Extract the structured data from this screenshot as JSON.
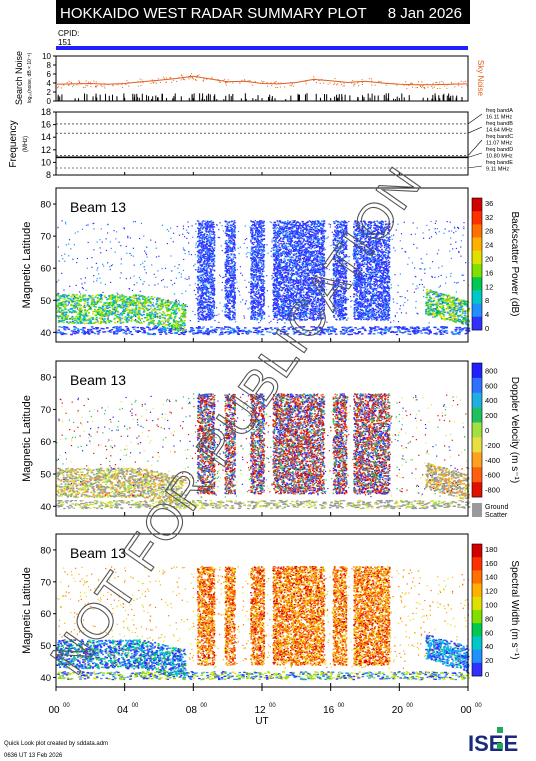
{
  "header": {
    "title": "HOKKAIDO WEST RADAR SUMMARY PLOT",
    "date": "8 Jan 2026",
    "cpid_label": "CPID:",
    "cpid_value": "151"
  },
  "colors": {
    "header_bg": "#000000",
    "cpid_bar": "#1f1fff",
    "noise_line": "#e06020",
    "ground_scatter": "#9a9a9a"
  },
  "chart_data": [
    {
      "id": "search-noise",
      "type": "line",
      "ylabel": "Search Noise",
      "ylabel_sub": "log₁₀(noise, dB × 10⁻⁶)",
      "yticks": [
        "0",
        "2",
        "4",
        "6",
        "8",
        "10"
      ],
      "ylim": [
        0,
        10
      ],
      "right_label": "Sky Noise",
      "x": [
        0,
        1,
        2,
        3,
        4,
        5,
        6,
        7,
        8,
        9,
        10,
        11,
        12,
        13,
        14,
        15,
        16,
        17,
        18,
        19,
        20,
        21,
        22,
        23,
        24
      ],
      "values": [
        3.7,
        3.8,
        3.9,
        3.7,
        3.9,
        4.3,
        4.6,
        5.0,
        5.5,
        4.9,
        4.3,
        4.4,
        3.9,
        3.8,
        4.1,
        4.8,
        4.5,
        4.1,
        4.4,
        4.0,
        3.7,
        3.6,
        3.6,
        3.7,
        3.8
      ]
    },
    {
      "id": "frequency",
      "type": "line",
      "ylabel": "Frequency",
      "ylabel_sub": "(MHz)",
      "yticks": [
        "8",
        "10",
        "12",
        "14",
        "16",
        "18"
      ],
      "ylim": [
        8,
        18
      ],
      "bands": [
        {
          "name": "freq bandA",
          "value": "16.11 MHz"
        },
        {
          "name": "freq bandB",
          "value": "14.64 MHz"
        },
        {
          "name": "freq bandC",
          "value": "11.07 MHz"
        },
        {
          "name": "freq bandD",
          "value": "10.80 MHz"
        },
        {
          "name": "freq bandE",
          "value": "9.11 MHz"
        }
      ]
    },
    {
      "id": "power",
      "type": "heatmap",
      "beam": "Beam 13",
      "ylabel": "Magnetic Latitude",
      "yticks": [
        "40",
        "50",
        "60",
        "70",
        "80"
      ],
      "ylim": [
        37,
        85
      ],
      "colorbar_label": "Backscatter Power (dB)",
      "colorbar_ticks": [
        "0",
        "4",
        "8",
        "12",
        "16",
        "20",
        "24",
        "28",
        "32",
        "36"
      ],
      "colors": [
        "#3030ff",
        "#2090ff",
        "#00c8c8",
        "#00c850",
        "#80e000",
        "#e0e000",
        "#ffb000",
        "#ff7000",
        "#ff3000",
        "#d00000"
      ]
    },
    {
      "id": "velocity",
      "type": "heatmap",
      "beam": "Beam 13",
      "ylabel": "Magnetic Latitude",
      "yticks": [
        "40",
        "50",
        "60",
        "70",
        "80"
      ],
      "ylim": [
        37,
        85
      ],
      "colorbar_label": "Doppler Velocity (m s⁻¹)",
      "colorbar_ticks": [
        "800",
        "600",
        "400",
        "200",
        "0",
        "-200",
        "-400",
        "-600",
        "-800"
      ],
      "colors": [
        "#2020ff",
        "#3070ff",
        "#20b0e0",
        "#20c060",
        "#a0e040",
        "#e8e040",
        "#ffa020",
        "#ff6010",
        "#e01000"
      ],
      "ground_label_1": "Ground",
      "ground_label_2": "Scatter"
    },
    {
      "id": "width",
      "type": "heatmap",
      "beam": "Beam 13",
      "ylabel": "Magnetic Latitude",
      "yticks": [
        "40",
        "50",
        "60",
        "70",
        "80"
      ],
      "ylim": [
        37,
        85
      ],
      "colorbar_label": "Spectral Width (m s⁻¹)",
      "colorbar_ticks": [
        "0",
        "20",
        "40",
        "60",
        "80",
        "100",
        "120",
        "140",
        "160",
        "180"
      ],
      "colors": [
        "#3030ff",
        "#2090ff",
        "#00c8c8",
        "#00c850",
        "#80e000",
        "#e0e000",
        "#ffb000",
        "#ff7000",
        "#ff3000",
        "#d00000"
      ]
    }
  ],
  "xaxis": {
    "ticks": [
      "00",
      "04",
      "08",
      "12",
      "16",
      "20",
      "00"
    ],
    "tick_sup": "00",
    "label": "UT",
    "xlim": [
      0,
      24
    ]
  },
  "watermark": "NOT FOR PUBLICATION",
  "footer": {
    "line1": "Quick Look plot created by sddata.adm",
    "line2": "0636 UT 13 Feb 2026",
    "logo": "ISEE"
  }
}
